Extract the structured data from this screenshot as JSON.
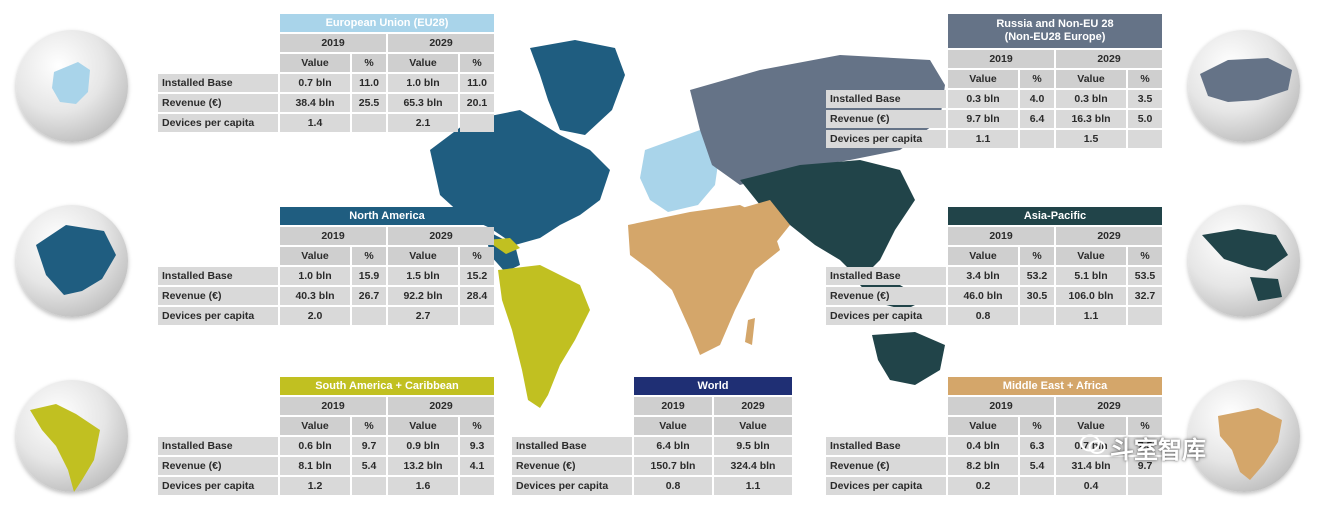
{
  "colors": {
    "eu": "#a9d4ea",
    "north_america": "#1f5d80",
    "russia": "#657387",
    "asia_pacific": "#214449",
    "south_america": "#c1c021",
    "world": "#1f2f74",
    "middle_east_africa": "#d4a66a"
  },
  "globes": [
    {
      "name": "europe-globe-icon"
    },
    {
      "name": "north-america-globe-icon"
    },
    {
      "name": "south-america-globe-icon"
    },
    {
      "name": "russia-globe-icon"
    },
    {
      "name": "asia-pacific-globe-icon"
    },
    {
      "name": "africa-globe-icon"
    }
  ],
  "headers": {
    "y1": "2019",
    "y2": "2029",
    "value": "Value",
    "pct": "%"
  },
  "row_labels": {
    "installed": "Installed Base",
    "revenue": "Revenue (€)",
    "devices": "Devices per capita"
  },
  "eu": {
    "title": "European Union (EU28)",
    "installed": [
      "0.7 bln",
      "11.0",
      "1.0 bln",
      "11.0"
    ],
    "revenue": [
      "38.4 bln",
      "25.5",
      "65.3 bln",
      "20.1"
    ],
    "devices": [
      "1.4",
      "2.1"
    ]
  },
  "north_america": {
    "title": "North America",
    "installed": [
      "1.0 bln",
      "15.9",
      "1.5 bln",
      "15.2"
    ],
    "revenue": [
      "40.3 bln",
      "26.7",
      "92.2 bln",
      "28.4"
    ],
    "devices": [
      "2.0",
      "2.7"
    ]
  },
  "south_america": {
    "title": "South America + Caribbean",
    "installed": [
      "0.6 bln",
      "9.7",
      "0.9 bln",
      "9.3"
    ],
    "revenue": [
      "8.1 bln",
      "5.4",
      "13.2 bln",
      "4.1"
    ],
    "devices": [
      "1.2",
      "1.6"
    ]
  },
  "world": {
    "title": "World",
    "installed": [
      "6.4 bln",
      "9.5 bln"
    ],
    "revenue": [
      "150.7 bln",
      "324.4 bln"
    ],
    "devices": [
      "0.8",
      "1.1"
    ]
  },
  "russia": {
    "title_line1": "Russia and Non-EU 28",
    "title_line2": "(Non-EU28 Europe)",
    "installed": [
      "0.3 bln",
      "4.0",
      "0.3 bln",
      "3.5"
    ],
    "revenue": [
      "9.7 bln",
      "6.4",
      "16.3 bln",
      "5.0"
    ],
    "devices": [
      "1.1",
      "1.5"
    ]
  },
  "asia_pacific": {
    "title": "Asia-Pacific",
    "installed": [
      "3.4 bln",
      "53.2",
      "5.1 bln",
      "53.5"
    ],
    "revenue": [
      "46.0 bln",
      "30.5",
      "106.0 bln",
      "32.7"
    ],
    "devices": [
      "0.8",
      "1.1"
    ]
  },
  "middle_east_africa": {
    "title": "Middle East + Africa",
    "installed": [
      "0.4 bln",
      "6.3",
      "0.7 bln",
      "7.5"
    ],
    "revenue": [
      "8.2 bln",
      "5.4",
      "31.4 bln",
      "9.7"
    ],
    "devices": [
      "0.2",
      "0.4"
    ]
  },
  "watermark": {
    "text": "斗室智库"
  }
}
